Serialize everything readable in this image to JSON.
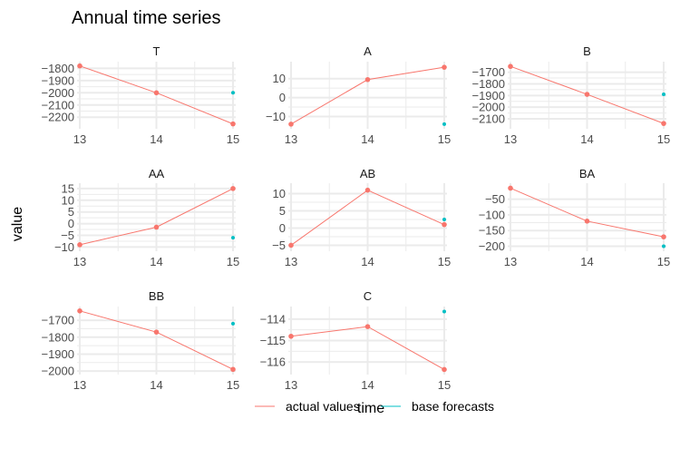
{
  "title": "Annual time series",
  "xlabel": "time",
  "ylabel": "value",
  "legend": {
    "placement": "bottom",
    "items": [
      {
        "label": "actual values",
        "color": "#F8766D"
      },
      {
        "label": "base forecasts",
        "color": "#00BFC4"
      }
    ]
  },
  "colors": {
    "actual": "#F8766D",
    "forecast": "#00BFC4",
    "grid": "#EBEBEB",
    "text": "#4D4D4D"
  },
  "chart_data": [
    {
      "type": "line",
      "title": "T",
      "x": [
        13,
        14,
        15
      ],
      "actual": [
        -1780,
        -2000,
        -2255
      ],
      "forecast": [
        {
          "x": 15,
          "y": -2000
        }
      ],
      "yticks": [
        -1800,
        -1900,
        -2000,
        -2100,
        -2200
      ],
      "ylim": [
        -2280,
        -1760
      ]
    },
    {
      "type": "line",
      "title": "A",
      "x": [
        13,
        14,
        15
      ],
      "actual": [
        -14,
        9.5,
        16
      ],
      "forecast": [
        {
          "x": 15,
          "y": -14
        }
      ],
      "yticks": [
        10,
        0,
        -10
      ],
      "ylim": [
        -15.5,
        18
      ]
    },
    {
      "type": "line",
      "title": "B",
      "x": [
        13,
        14,
        15
      ],
      "actual": [
        -1650,
        -1890,
        -2140
      ],
      "forecast": [
        {
          "x": 15,
          "y": -1890
        }
      ],
      "yticks": [
        -1700,
        -1800,
        -1900,
        -2000,
        -2100
      ],
      "ylim": [
        -2170,
        -1625
      ]
    },
    {
      "type": "line",
      "title": "AA",
      "x": [
        13,
        14,
        15
      ],
      "actual": [
        -9,
        -1.5,
        15
      ],
      "forecast": [
        {
          "x": 15,
          "y": -6
        }
      ],
      "yticks": [
        15,
        10,
        5,
        0,
        -5,
        -10
      ],
      "ylim": [
        -11,
        16.5
      ]
    },
    {
      "type": "line",
      "title": "AB",
      "x": [
        13,
        14,
        15
      ],
      "actual": [
        -5,
        11,
        1
      ],
      "forecast": [
        {
          "x": 15,
          "y": 2.5
        }
      ],
      "yticks": [
        10,
        5,
        0,
        -5
      ],
      "ylim": [
        -6.2,
        12.5
      ]
    },
    {
      "type": "line",
      "title": "BA",
      "x": [
        13,
        14,
        15
      ],
      "actual": [
        -15,
        -120,
        -170
      ],
      "forecast": [
        {
          "x": 15,
          "y": -200
        }
      ],
      "yticks": [
        -50,
        -100,
        -150,
        -200
      ],
      "ylim": [
        -210,
        -5
      ]
    },
    {
      "type": "line",
      "title": "BB",
      "x": [
        13,
        14,
        15
      ],
      "actual": [
        -1645,
        -1770,
        -1990
      ],
      "forecast": [
        {
          "x": 15,
          "y": -1720
        }
      ],
      "yticks": [
        -1700,
        -1800,
        -1900,
        -2000
      ],
      "ylim": [
        -2010,
        -1630
      ]
    },
    {
      "type": "line",
      "title": "C",
      "x": [
        13,
        14,
        15
      ],
      "actual": [
        -114.8,
        -114.35,
        -116.35
      ],
      "forecast": [
        {
          "x": 15,
          "y": -113.65
        }
      ],
      "yticks": [
        -114,
        -115,
        -116
      ],
      "ylim": [
        -116.5,
        -113.5
      ]
    }
  ]
}
